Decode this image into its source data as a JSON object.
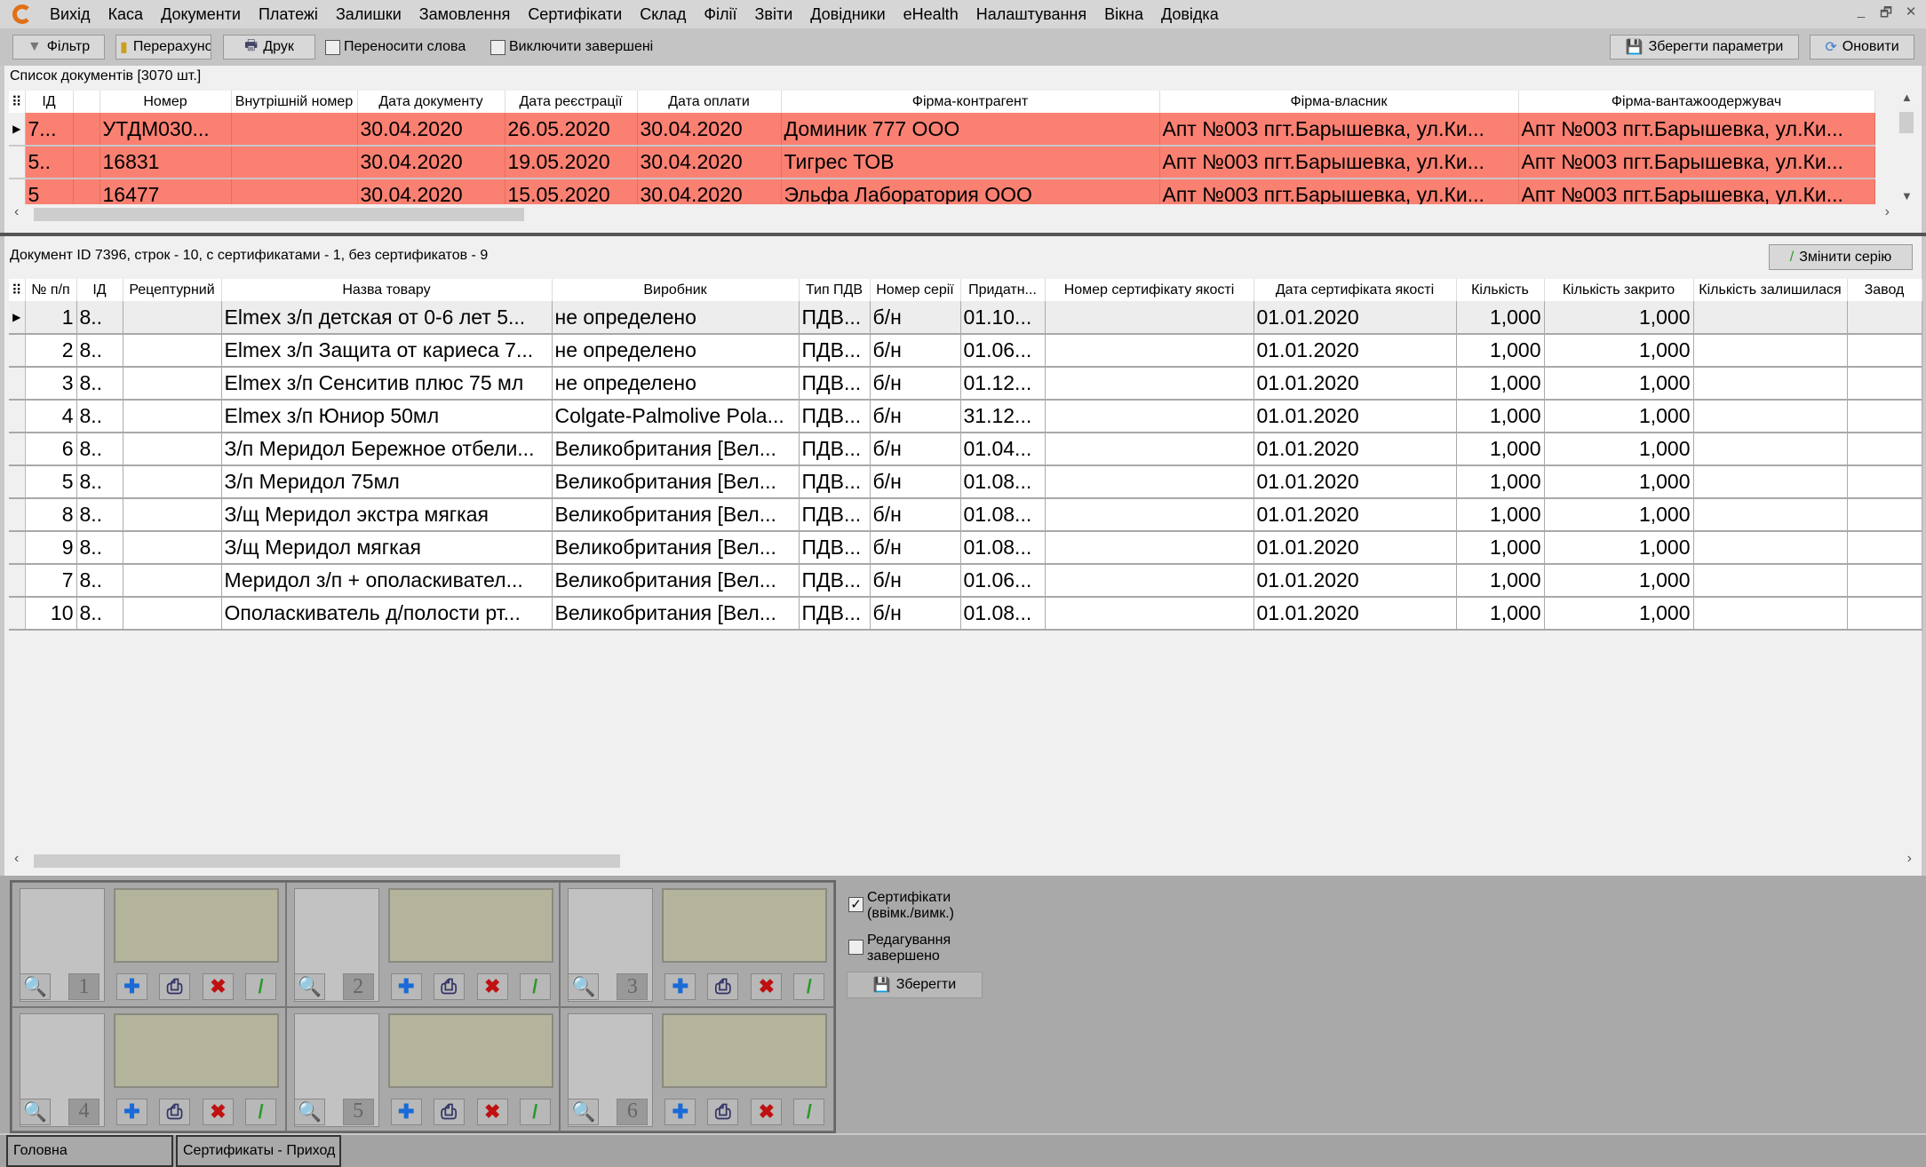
{
  "menu": [
    "Вихід",
    "Каса",
    "Документи",
    "Платежі",
    "Залишки",
    "Замовлення",
    "Сертифікати",
    "Склад",
    "Філії",
    "Звіти",
    "Довідники",
    "eHealth",
    "Налаштування",
    "Вікна",
    "Довідка"
  ],
  "window_controls": [
    "_",
    "🗗",
    "✕"
  ],
  "toolbar": {
    "filter": "Фільтр",
    "recalc": "Перерахунок",
    "print": "Друк",
    "wrap_words": "Переносити слова",
    "wrap_checked": false,
    "exclude_done": "Виключити завершені",
    "exclude_checked": false,
    "save_params": "Зберегти параметри",
    "refresh": "Оновити"
  },
  "docs": {
    "caption": "Список документів [3070 шт.]",
    "columns": [
      "ІД",
      "",
      "Номер",
      "Внутрішній номер",
      "Дата документу",
      "Дата реєстрації",
      "Дата оплати",
      "Фірма-контрагент",
      "Фірма-власник",
      "Фірма-вантажоодержувач"
    ],
    "rows": [
      [
        "7...",
        "",
        "УТДМ030...",
        "",
        "30.04.2020",
        "26.05.2020",
        "30.04.2020",
        "Доминик 777 ООО",
        "Апт №003 пгт.Барышевка, ул.Ки...",
        "Апт №003 пгт.Барышевка, ул.Ки..."
      ],
      [
        "5..",
        "",
        "16831",
        "",
        "30.04.2020",
        "19.05.2020",
        "30.04.2020",
        "Тигрес ТОВ",
        "Апт №003 пгт.Барышевка, ул.Ки...",
        "Апт №003 пгт.Барышевка, ул.Ки..."
      ],
      [
        "5",
        "",
        "16477",
        "",
        "30.04.2020",
        "15.05.2020",
        "30.04.2020",
        "Эльфа Лаборатория ООО",
        "Апт №003 пгт.Барышевка, ул.Ки...",
        "Апт №003 пгт.Барышевка, ул.Ки..."
      ]
    ],
    "row_color": "#fa8072"
  },
  "lines": {
    "caption": "Документ ID 7396, строк - 10, с сертификатами - 1, без сертификатов - 9",
    "change_series": "Змінити серію",
    "columns": [
      "№ п/п",
      "ІД",
      "Рецептурний",
      "Назва товару",
      "Виробник",
      "Тип ПДВ",
      "Номер серії",
      "Придатн...",
      "Номер сертифікату якості",
      "Дата сертифіката якості",
      "Кількість",
      "Кількість закрито",
      "Кількість залишилася",
      "Завод"
    ],
    "rows": [
      [
        "1",
        "8..",
        "",
        "Elmex з/п детская от 0-6 лет 5...",
        "не определено",
        "ПДВ...",
        "б/н",
        "01.10...",
        "",
        "01.01.2020",
        "1,000",
        "1,000",
        "",
        ""
      ],
      [
        "2",
        "8..",
        "",
        "Elmex з/п Защита от кариеса 7...",
        "не определено",
        "ПДВ...",
        "б/н",
        "01.06...",
        "",
        "01.01.2020",
        "1,000",
        "1,000",
        "",
        ""
      ],
      [
        "3",
        "8..",
        "",
        "Elmex з/п Сенситив плюс 75 мл",
        "не определено",
        "ПДВ...",
        "б/н",
        "01.12...",
        "",
        "01.01.2020",
        "1,000",
        "1,000",
        "",
        ""
      ],
      [
        "4",
        "8..",
        "",
        "Elmex з/п Юниор 50мл",
        "Colgate-Palmolive Pola...",
        "ПДВ...",
        "б/н",
        "31.12...",
        "",
        "01.01.2020",
        "1,000",
        "1,000",
        "",
        ""
      ],
      [
        "6",
        "8..",
        "",
        "З/п Меридол Бережное отбели...",
        "Великобритания [Вел...",
        "ПДВ...",
        "б/н",
        "01.04...",
        "",
        "01.01.2020",
        "1,000",
        "1,000",
        "",
        ""
      ],
      [
        "5",
        "8..",
        "",
        "З/п Меридол 75мл",
        "Великобритания [Вел...",
        "ПДВ...",
        "б/н",
        "01.08...",
        "",
        "01.01.2020",
        "1,000",
        "1,000",
        "",
        ""
      ],
      [
        "8",
        "8..",
        "",
        "З/щ Меридол экстра мягкая",
        "Великобритания [Вел...",
        "ПДВ...",
        "б/н",
        "01.08...",
        "",
        "01.01.2020",
        "1,000",
        "1,000",
        "",
        ""
      ],
      [
        "9",
        "8..",
        "",
        "З/щ Меридол мягкая",
        "Великобритания [Вел...",
        "ПДВ...",
        "б/н",
        "01.08...",
        "",
        "01.01.2020",
        "1,000",
        "1,000",
        "",
        ""
      ],
      [
        "7",
        "8..",
        "",
        "Меридол з/п + ополаскивател...",
        "Великобритания [Вел...",
        "ПДВ...",
        "б/н",
        "01.06...",
        "",
        "01.01.2020",
        "1,000",
        "1,000",
        "",
        ""
      ],
      [
        "10",
        "8..",
        "",
        "Ополаскиватель д/полости рт...",
        "Великобритания [Вел...",
        "ПДВ...",
        "б/н",
        "01.08...",
        "",
        "01.01.2020",
        "1,000",
        "1,000",
        "",
        ""
      ]
    ]
  },
  "certs": {
    "slots": [
      "1",
      "2",
      "3",
      "4",
      "5",
      "6"
    ],
    "toggle": "Сертифікати (ввімк./вимк.)",
    "toggle_checked": true,
    "edit_done": "Редагування завершено",
    "edit_done_checked": false,
    "save": "Зберегти"
  },
  "tabs": [
    "Головна",
    "Сертификаты - Приход"
  ]
}
